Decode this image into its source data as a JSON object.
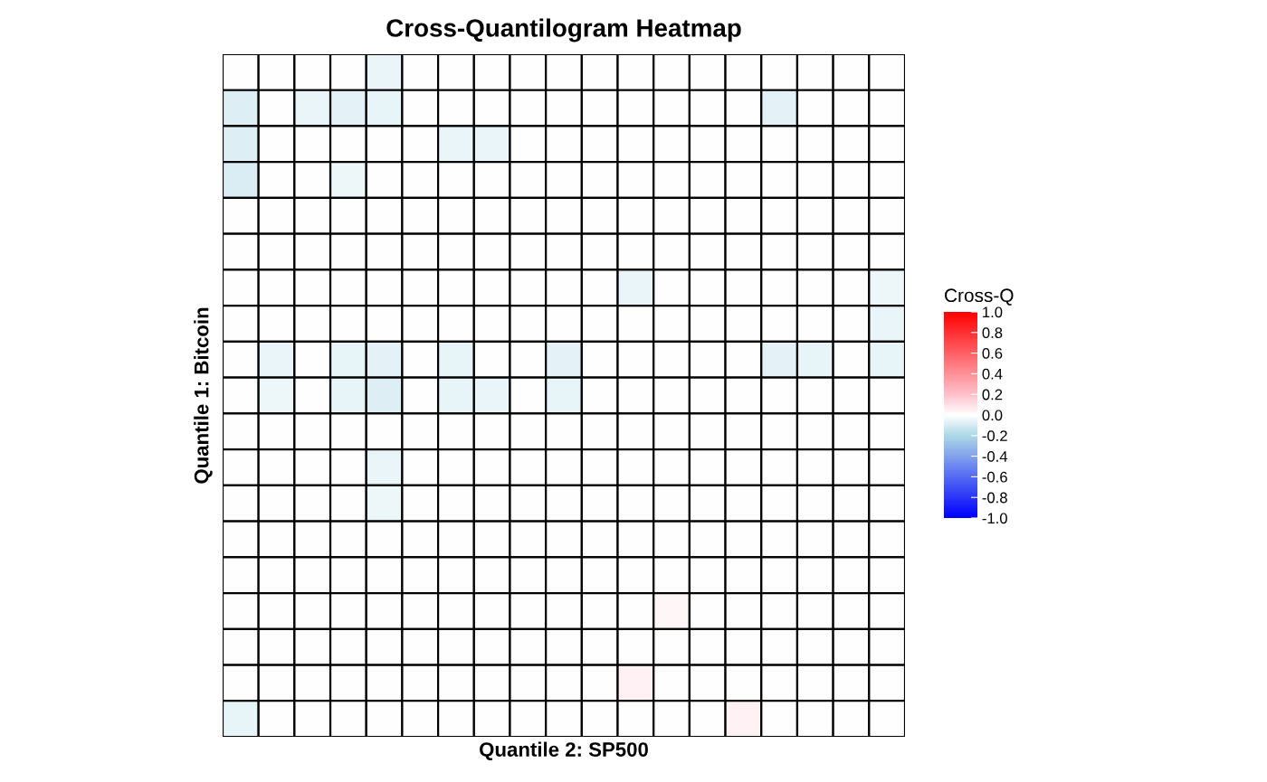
{
  "chart_data": {
    "type": "heatmap",
    "title": "Cross-Quantilogram Heatmap",
    "xlabel": "Quantile 2: SP500",
    "ylabel": "Quantile 1: Bitcoin",
    "clabel": "Cross-Q",
    "categories": [
      null,
      null,
      null,
      null,
      null,
      null,
      null,
      null,
      null,
      null,
      null,
      null,
      null,
      null,
      null,
      null,
      null,
      null,
      null
    ],
    "y_categories": [
      null,
      null,
      null,
      null,
      null,
      null,
      null,
      null,
      null,
      null,
      null,
      null,
      null,
      null,
      null,
      null,
      null,
      null,
      null
    ],
    "cells": [
      [
        0,
        0,
        0,
        0,
        -0.05,
        0,
        0,
        0,
        0,
        0,
        0,
        0,
        0,
        0,
        0,
        0,
        0,
        0,
        0
      ],
      [
        -0.08,
        0,
        -0.05,
        -0.07,
        -0.06,
        0,
        0,
        0,
        0,
        0,
        0,
        0,
        0,
        0,
        0,
        -0.07,
        0,
        0,
        0
      ],
      [
        -0.08,
        0,
        0,
        0,
        0,
        0,
        -0.05,
        -0.05,
        0,
        0,
        0,
        0,
        0,
        0,
        0,
        0,
        0,
        0,
        0
      ],
      [
        -0.09,
        0,
        0,
        -0.04,
        0,
        0,
        0,
        0,
        0,
        0,
        0,
        0,
        0,
        0,
        0,
        0,
        0,
        0,
        0
      ],
      [
        0,
        0,
        0,
        0,
        0,
        0,
        0,
        0,
        0,
        0,
        0,
        0,
        0,
        0,
        0,
        0,
        0,
        0,
        0
      ],
      [
        0,
        0,
        0,
        0,
        0,
        0,
        0,
        0,
        0,
        0,
        0,
        0,
        0,
        0,
        0,
        0,
        0,
        0,
        0
      ],
      [
        0,
        0,
        0,
        0,
        0,
        0,
        0,
        0,
        0,
        0,
        0,
        -0.05,
        0,
        0,
        0,
        0,
        0,
        0,
        -0.04
      ],
      [
        0,
        0,
        0,
        0,
        0,
        0,
        0,
        0,
        0,
        0,
        0,
        0,
        0,
        0,
        0,
        0,
        0,
        0,
        -0.05
      ],
      [
        0,
        -0.05,
        0,
        -0.06,
        -0.07,
        0,
        -0.06,
        0,
        0,
        -0.07,
        0,
        0,
        0,
        0,
        0,
        -0.07,
        -0.06,
        0,
        -0.06
      ],
      [
        0,
        -0.04,
        0,
        -0.06,
        -0.08,
        0,
        -0.06,
        -0.05,
        0,
        -0.06,
        0,
        0,
        0,
        0,
        0,
        0,
        0,
        0,
        0
      ],
      [
        0,
        0,
        0,
        0,
        0,
        0,
        0,
        0,
        0,
        0,
        0,
        0,
        0,
        0,
        0,
        0,
        0,
        0,
        0
      ],
      [
        0,
        0,
        0,
        0,
        -0.05,
        0,
        0,
        0,
        0,
        0,
        0,
        0,
        0,
        0,
        0,
        0,
        0,
        0,
        0
      ],
      [
        0,
        0,
        0,
        0,
        -0.04,
        0,
        0,
        0,
        0,
        0,
        0,
        0,
        0,
        0,
        0,
        0,
        0,
        0,
        0
      ],
      [
        0,
        0,
        0,
        0,
        0,
        0,
        0,
        0,
        0,
        0,
        0,
        0,
        0,
        0,
        0,
        0,
        0,
        0,
        0
      ],
      [
        0,
        0,
        0,
        0,
        0,
        0,
        0,
        0,
        0,
        0,
        0,
        0,
        0,
        0,
        0,
        0,
        0,
        0,
        0
      ],
      [
        0,
        0,
        0,
        0,
        0,
        0,
        0,
        0,
        0,
        0,
        0,
        0,
        0.03,
        0,
        0,
        0,
        0,
        0,
        0
      ],
      [
        0,
        0,
        0,
        0,
        0,
        0,
        0,
        0,
        0,
        0,
        0,
        0,
        0,
        0,
        0,
        0,
        0,
        0,
        0
      ],
      [
        0,
        0,
        0,
        0,
        0,
        0,
        0,
        0,
        0,
        0,
        0,
        0.04,
        0,
        0,
        0,
        0,
        0,
        0,
        0
      ],
      [
        -0.06,
        0,
        0,
        0,
        0,
        0,
        0,
        0,
        0,
        0,
        0,
        0,
        0,
        0,
        0.04,
        0,
        0,
        0,
        0
      ]
    ],
    "clim": [
      -1,
      1
    ],
    "cticks": [
      {
        "value": -1,
        "label": "-1.0"
      },
      {
        "value": -0.8,
        "label": "-0.8"
      },
      {
        "value": -0.6,
        "label": "-0.6"
      },
      {
        "value": -0.4,
        "label": "-0.4"
      },
      {
        "value": -0.2,
        "label": "-0.2"
      },
      {
        "value": 0,
        "label": "0.0"
      },
      {
        "value": 0.2,
        "label": "0.2"
      },
      {
        "value": 0.4,
        "label": "0.4"
      },
      {
        "value": 0.6,
        "label": "0.6"
      },
      {
        "value": 0.8,
        "label": "0.8"
      },
      {
        "value": 1,
        "label": "1.0"
      }
    ]
  }
}
